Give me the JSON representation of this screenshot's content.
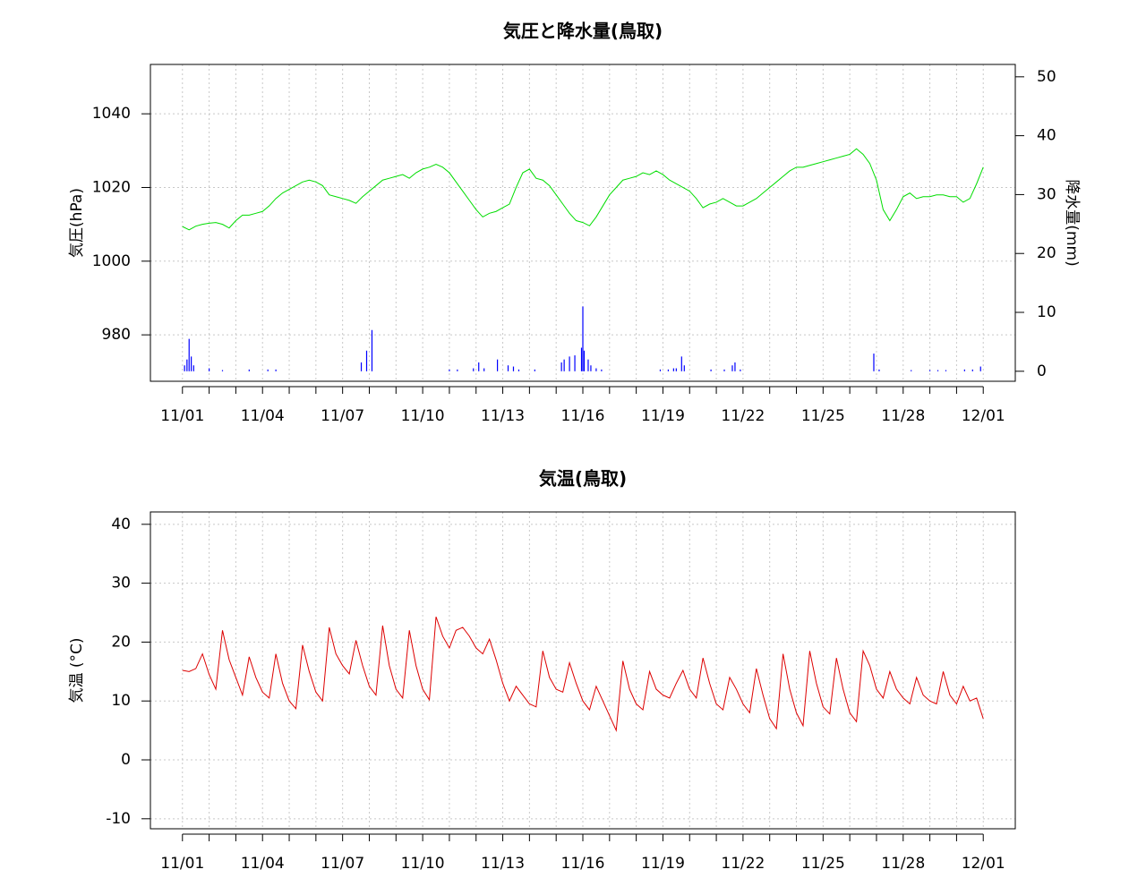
{
  "chart_data": [
    {
      "type": "line",
      "title": "気圧と降水量(鳥取)",
      "ylabel": "気圧(hPa)",
      "y2label": "降水量(mm)",
      "xlim": [
        -1.2,
        31.2
      ],
      "ylim": [
        967.4,
        1053.4
      ],
      "y2lim": [
        -1.7,
        52.1
      ],
      "xticks": [
        {
          "value": 0,
          "label": "11/01"
        },
        {
          "value": 3,
          "label": "11/04"
        },
        {
          "value": 6,
          "label": "11/07"
        },
        {
          "value": 9,
          "label": "11/10"
        },
        {
          "value": 12,
          "label": "11/13"
        },
        {
          "value": 15,
          "label": "11/16"
        },
        {
          "value": 18,
          "label": "11/19"
        },
        {
          "value": 21,
          "label": "11/22"
        },
        {
          "value": 24,
          "label": "11/25"
        },
        {
          "value": 27,
          "label": "11/28"
        },
        {
          "value": 30,
          "label": "12/01"
        }
      ],
      "xminorticks": [
        1,
        2,
        4,
        5,
        7,
        8,
        10,
        11,
        13,
        14,
        16,
        17,
        19,
        20,
        22,
        23,
        25,
        26,
        28,
        29
      ],
      "yticks": [
        980,
        1000,
        1020,
        1040
      ],
      "y2ticks": [
        0,
        10,
        20,
        30,
        40,
        50
      ],
      "grid": true,
      "x": [
        0,
        0.25,
        0.5,
        0.75,
        1,
        1.25,
        1.5,
        1.75,
        2,
        2.25,
        2.5,
        2.75,
        3,
        3.25,
        3.5,
        3.75,
        4,
        4.25,
        4.5,
        4.75,
        5,
        5.25,
        5.5,
        5.75,
        6,
        6.25,
        6.5,
        6.75,
        7,
        7.25,
        7.5,
        7.75,
        8,
        8.25,
        8.5,
        8.75,
        9,
        9.25,
        9.5,
        9.75,
        10,
        10.25,
        10.5,
        10.75,
        11,
        11.25,
        11.5,
        11.75,
        12,
        12.25,
        12.5,
        12.75,
        13,
        13.25,
        13.5,
        13.75,
        14,
        14.25,
        14.5,
        14.75,
        15,
        15.25,
        15.5,
        15.75,
        16,
        16.25,
        16.5,
        16.75,
        17,
        17.25,
        17.5,
        17.75,
        18,
        18.25,
        18.5,
        18.75,
        19,
        19.25,
        19.5,
        19.75,
        20,
        20.25,
        20.5,
        20.75,
        21,
        21.25,
        21.5,
        21.75,
        22,
        22.25,
        22.5,
        22.75,
        23,
        23.25,
        23.5,
        23.75,
        24,
        24.25,
        24.5,
        24.75,
        25,
        25.25,
        25.5,
        25.75,
        26,
        26.25,
        26.5,
        26.75,
        27,
        27.25,
        27.5,
        27.75,
        28,
        28.25,
        28.5,
        28.75,
        29,
        29.25,
        29.5,
        29.75,
        30
      ],
      "series": [
        {
          "color": "#00dd00",
          "values": [
            1009.4,
            1008.5,
            1009.5,
            1010,
            1010.3,
            1010.5,
            1010,
            1009,
            1011,
            1012.5,
            1012.5,
            1013,
            1013.5,
            1015,
            1017,
            1018.5,
            1019.5,
            1020.5,
            1021.5,
            1022,
            1021.5,
            1020.5,
            1018,
            1017.5,
            1017,
            1016.5,
            1015.7,
            1017.5,
            1019,
            1020.5,
            1022,
            1022.5,
            1023,
            1023.5,
            1022.5,
            1024,
            1025,
            1025.5,
            1026.3,
            1025.5,
            1024,
            1021.5,
            1019,
            1016.5,
            1014,
            1012,
            1013,
            1013.5,
            1014.5,
            1015.5,
            1020,
            1024,
            1025,
            1022.5,
            1022,
            1020.5,
            1018,
            1015.5,
            1013,
            1011,
            1010.5,
            1009.6,
            1012,
            1015,
            1018,
            1020,
            1022,
            1022.5,
            1023,
            1024,
            1023.5,
            1024.5,
            1023.5,
            1022,
            1021,
            1020,
            1019,
            1017,
            1014.5,
            1015.5,
            1016,
            1017,
            1016,
            1015,
            1015,
            1016,
            1017,
            1018.5,
            1020,
            1021.5,
            1023,
            1024.5,
            1025.5,
            1025.5,
            1026,
            1026.5,
            1027,
            1027.5,
            1028,
            1028.5,
            1029,
            1030.5,
            1029,
            1026.5,
            1022,
            1014,
            1011,
            1014,
            1017.5,
            1018.5,
            1017,
            1017.5,
            1017.5,
            1018,
            1018,
            1017.5,
            1017.5,
            1016,
            1017,
            1021,
            1025.5
          ]
        },
        {
          "type": "bar",
          "axis": "y2",
          "color": "#0000ff",
          "x": [
            0.08,
            0.17,
            0.25,
            0.33,
            0.42,
            1.0,
            1.5,
            2.5,
            3.2,
            3.5,
            6.7,
            6.9,
            7.1,
            10.0,
            10.3,
            10.9,
            11.1,
            11.3,
            11.8,
            12.2,
            12.4,
            12.6,
            13.2,
            14.2,
            14.3,
            14.5,
            14.7,
            14.95,
            15.0,
            15.05,
            15.2,
            15.3,
            15.5,
            15.7,
            17.9,
            18.2,
            18.4,
            18.5,
            18.7,
            18.8,
            19.8,
            20.3,
            20.6,
            20.7,
            20.9,
            25.9,
            26.1,
            27.3,
            28.0,
            28.3,
            28.6,
            29.3,
            29.6,
            29.9
          ],
          "values": [
            1,
            2,
            5.5,
            2.5,
            1,
            0.5,
            0.2,
            0.3,
            0.3,
            0.3,
            1.5,
            3.5,
            7,
            0.3,
            0.3,
            0.5,
            1.5,
            0.5,
            2,
            1,
            0.8,
            0.3,
            0.3,
            1.5,
            2,
            2.5,
            2.7,
            4,
            11,
            3.5,
            2,
            1,
            0.5,
            0.3,
            0.3,
            0.3,
            0.5,
            0.5,
            2.5,
            1,
            0.3,
            0.3,
            1,
            1.5,
            0.3,
            3,
            0.3,
            0.2,
            0.2,
            0.2,
            0.2,
            0.3,
            0.3,
            0.8
          ]
        }
      ]
    },
    {
      "type": "line",
      "title": "気温(鳥取)",
      "ylabel": "気温 (°C)",
      "xlim": [
        -1.2,
        31.2
      ],
      "ylim": [
        -11.7,
        42.1
      ],
      "xticks": [
        {
          "value": 0,
          "label": "11/01"
        },
        {
          "value": 3,
          "label": "11/04"
        },
        {
          "value": 6,
          "label": "11/07"
        },
        {
          "value": 9,
          "label": "11/10"
        },
        {
          "value": 12,
          "label": "11/13"
        },
        {
          "value": 15,
          "label": "11/16"
        },
        {
          "value": 18,
          "label": "11/19"
        },
        {
          "value": 21,
          "label": "11/22"
        },
        {
          "value": 24,
          "label": "11/25"
        },
        {
          "value": 27,
          "label": "11/28"
        },
        {
          "value": 30,
          "label": "12/01"
        }
      ],
      "xminorticks": [
        1,
        2,
        4,
        5,
        7,
        8,
        10,
        11,
        13,
        14,
        16,
        17,
        19,
        20,
        22,
        23,
        25,
        26,
        28,
        29
      ],
      "yticks": [
        -10,
        0,
        10,
        20,
        30,
        40
      ],
      "grid": true,
      "x": [
        0,
        0.25,
        0.5,
        0.75,
        1,
        1.25,
        1.5,
        1.75,
        2,
        2.25,
        2.5,
        2.75,
        3,
        3.25,
        3.5,
        3.75,
        4,
        4.25,
        4.5,
        4.75,
        5,
        5.25,
        5.5,
        5.75,
        6,
        6.25,
        6.5,
        6.75,
        7,
        7.25,
        7.5,
        7.75,
        8,
        8.25,
        8.5,
        8.75,
        9,
        9.25,
        9.5,
        9.75,
        10,
        10.25,
        10.5,
        10.75,
        11,
        11.25,
        11.5,
        11.75,
        12,
        12.25,
        12.5,
        12.75,
        13,
        13.25,
        13.5,
        13.75,
        14,
        14.25,
        14.5,
        14.75,
        15,
        15.25,
        15.5,
        15.75,
        16,
        16.25,
        16.5,
        16.75,
        17,
        17.25,
        17.5,
        17.75,
        18,
        18.25,
        18.5,
        18.75,
        19,
        19.25,
        19.5,
        19.75,
        20,
        20.25,
        20.5,
        20.75,
        21,
        21.25,
        21.5,
        21.75,
        22,
        22.25,
        22.5,
        22.75,
        23,
        23.25,
        23.5,
        23.75,
        24,
        24.25,
        24.5,
        24.75,
        25,
        25.25,
        25.5,
        25.75,
        26,
        26.25,
        26.5,
        26.75,
        27,
        27.25,
        27.5,
        27.75,
        28,
        28.25,
        28.5,
        28.75,
        29,
        29.25,
        29.5,
        29.75,
        30
      ],
      "series": [
        {
          "color": "#dd0000",
          "values": [
            15.2,
            15,
            15.5,
            18,
            14.5,
            12,
            22,
            17,
            14,
            11,
            17.5,
            14,
            11.5,
            10.5,
            18,
            13,
            10,
            8.7,
            19.5,
            15,
            11.5,
            10,
            22.5,
            18,
            16,
            14.6,
            20.3,
            16,
            12.5,
            11,
            22.8,
            16,
            12,
            10.5,
            22,
            16,
            12,
            10.2,
            24.3,
            21,
            19,
            22,
            22.5,
            21,
            19,
            18,
            20.5,
            17,
            13,
            10,
            12.5,
            11,
            9.5,
            9,
            18.5,
            14,
            12,
            11.5,
            16.5,
            13,
            10,
            8.5,
            12.5,
            10,
            7.5,
            5,
            16.8,
            12,
            9.5,
            8.5,
            15,
            12,
            11,
            10.5,
            13,
            15.2,
            12,
            10.5,
            17.3,
            13,
            9.5,
            8.5,
            14,
            12,
            9.5,
            8,
            15.5,
            11,
            7,
            5.3,
            18,
            12,
            8,
            5.8,
            18.5,
            13,
            9,
            7.8,
            17.3,
            12,
            8,
            6.5,
            18.5,
            16,
            12,
            10.5,
            15,
            12,
            10.5,
            9.5,
            14,
            11,
            10,
            9.5,
            15,
            11,
            9.5,
            12.5,
            10,
            10.5,
            7
          ]
        }
      ]
    }
  ]
}
